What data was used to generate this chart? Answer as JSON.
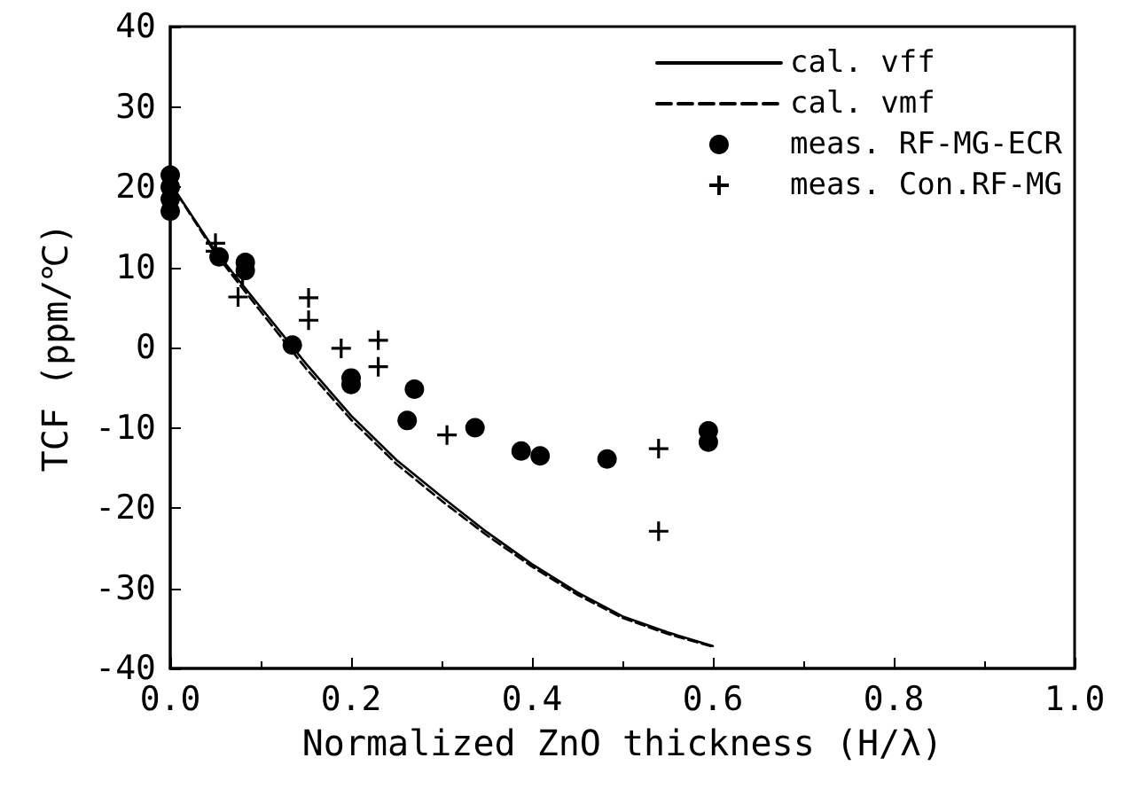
{
  "chart_data": {
    "type": "scatter",
    "xlabel": "Normalized ZnO thickness (H/λ)",
    "ylabel": "TCF (ppm/℃)",
    "xlim": [
      0,
      1
    ],
    "xticks": [
      {
        "value": 0,
        "label": "0.0"
      },
      {
        "value": 0.2,
        "label": "0.2"
      },
      {
        "value": 0.4,
        "label": "0.4"
      },
      {
        "value": 0.6,
        "label": "0.6"
      },
      {
        "value": 0.8,
        "label": "0.8"
      },
      {
        "value": 1,
        "label": "1.0"
      }
    ],
    "ylim": [
      -40,
      40
    ],
    "yticks": [
      -40,
      -30,
      -20,
      -10,
      0,
      10,
      20,
      30,
      40
    ],
    "grid": false,
    "legend": "top right",
    "series": [
      {
        "name": "cal. vff",
        "type": "line",
        "color": "#000000",
        "marker": "none",
        "line_style": "solid",
        "x": [
          0,
          0.05,
          0.1,
          0.15,
          0.2,
          0.25,
          0.3,
          0.35,
          0.4,
          0.45,
          0.5,
          0.55,
          0.6
        ],
        "values": [
          20.5,
          12,
          5,
          -2,
          -8.5,
          -14,
          -18.6,
          -23,
          -27,
          -30.5,
          -33.5,
          -35.5,
          -37.2
        ]
      },
      {
        "name": "cal. vmf",
        "type": "line",
        "color": "#000000",
        "marker": "none",
        "line_style": "dashed",
        "x": [
          0,
          0.05,
          0.1,
          0.15,
          0.2,
          0.25,
          0.3,
          0.35,
          0.4,
          0.45,
          0.5,
          0.55,
          0.6
        ],
        "values": [
          20.5,
          11.7,
          4.5,
          -2.6,
          -9,
          -14.5,
          -19.1,
          -23.4,
          -27.3,
          -30.8,
          -33.7,
          -35.7,
          -37.3
        ]
      },
      {
        "name": "meas. RF-MG-ECR",
        "color": "#000000",
        "marker": "circle",
        "x": [
          0,
          0,
          0,
          0,
          0.054,
          0.083,
          0.083,
          0.135,
          0.2,
          0.2,
          0.262,
          0.27,
          0.337,
          0.388,
          0.409,
          0.483,
          0.595,
          0.595
        ],
        "values": [
          21.5,
          20,
          18.5,
          17,
          11.3,
          10.6,
          9.6,
          0.3,
          -3.8,
          -4.6,
          -9.1,
          -5.2,
          -10,
          -12.9,
          -13.5,
          -13.9,
          -10.4,
          -11.8
        ]
      },
      {
        "name": "meas. Con.RF-MG",
        "color": "#000000",
        "marker": "cross",
        "x": [
          0.05,
          0.05,
          0.08,
          0.075,
          0.153,
          0.153,
          0.189,
          0.23,
          0.23,
          0.306,
          0.54,
          0.54
        ],
        "values": [
          13,
          12,
          9,
          6.3,
          6.2,
          3.4,
          -0.1,
          0.9,
          -2.4,
          -10.9,
          -12.6,
          -22.9
        ]
      }
    ]
  }
}
